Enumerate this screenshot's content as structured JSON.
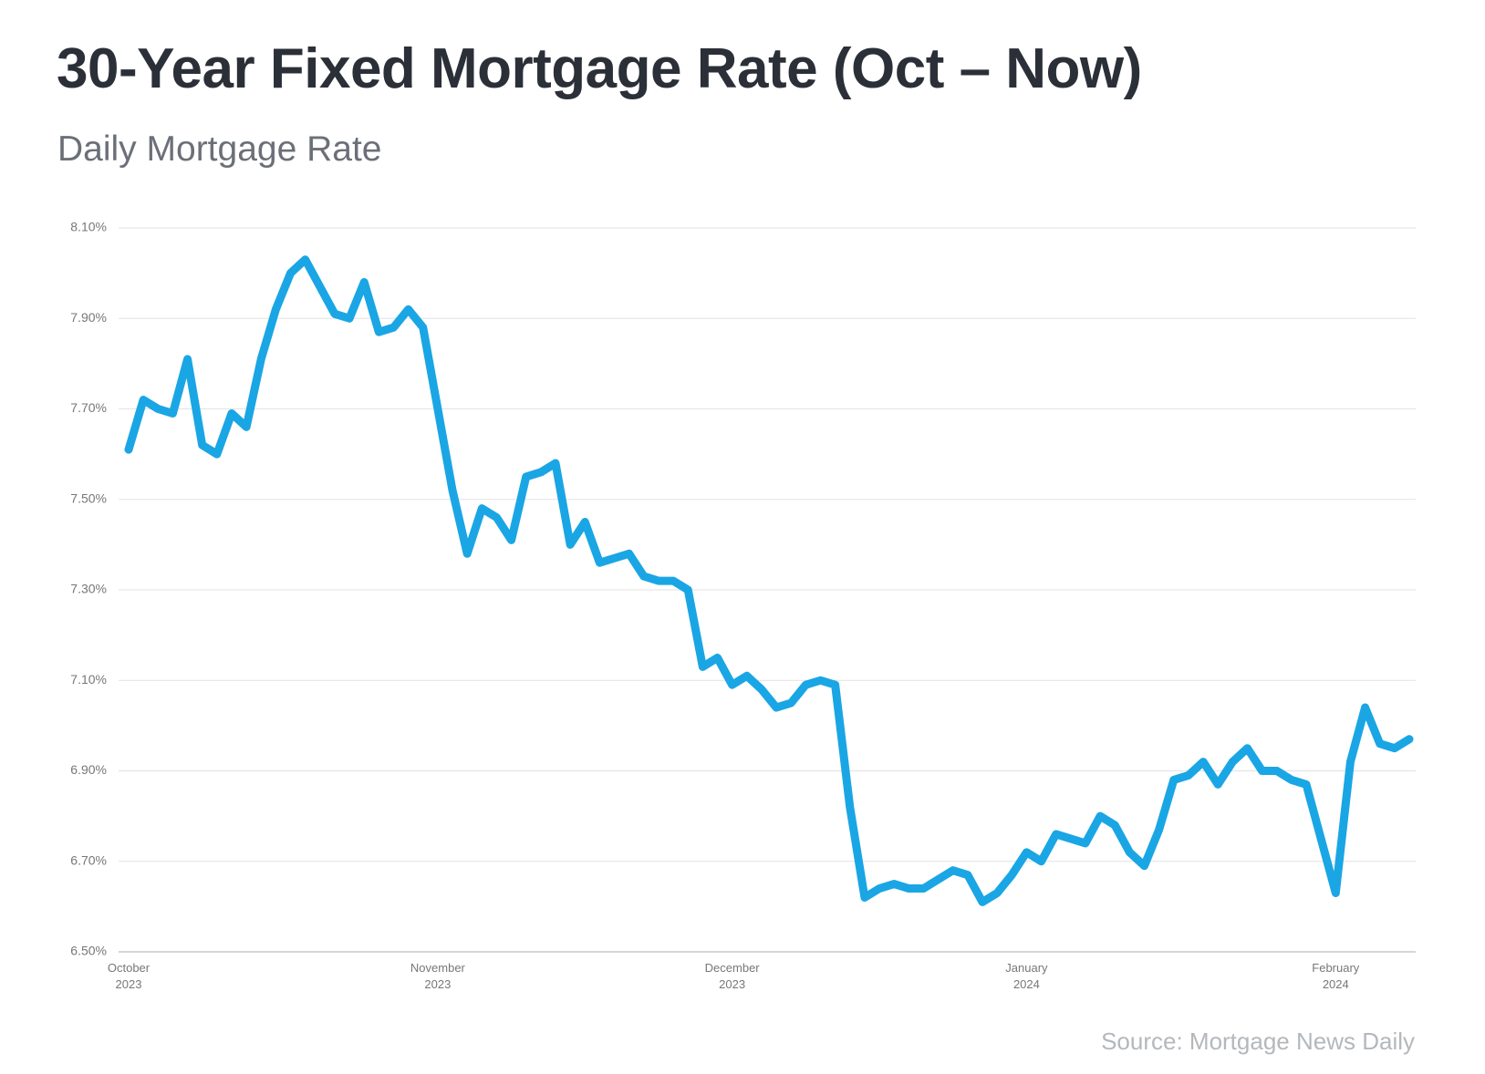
{
  "chart_data": {
    "type": "line",
    "title": "30-Year Fixed Mortgage Rate (Oct – Now)",
    "subtitle": "Daily Mortgage Rate",
    "source": "Source: Mortgage News Daily",
    "color": "#1aa6e4",
    "grid": true,
    "ylim": [
      6.5,
      8.1
    ],
    "yticks": [
      {
        "value": 6.5,
        "label": "6.50%"
      },
      {
        "value": 6.7,
        "label": "6.70%"
      },
      {
        "value": 6.9,
        "label": "6.90%"
      },
      {
        "value": 7.1,
        "label": "7.10%"
      },
      {
        "value": 7.3,
        "label": "7.30%"
      },
      {
        "value": 7.5,
        "label": "7.50%"
      },
      {
        "value": 7.7,
        "label": "7.70%"
      },
      {
        "value": 7.9,
        "label": "7.90%"
      },
      {
        "value": 8.1,
        "label": "8.10%"
      }
    ],
    "categories": [
      "October 2023",
      null,
      null,
      null,
      null,
      null,
      null,
      null,
      null,
      null,
      null,
      null,
      null,
      null,
      null,
      null,
      null,
      null,
      null,
      null,
      null,
      "November 2023",
      null,
      null,
      null,
      null,
      null,
      null,
      null,
      null,
      null,
      null,
      null,
      null,
      null,
      null,
      null,
      null,
      null,
      null,
      null,
      "December 2023",
      null,
      null,
      null,
      null,
      null,
      null,
      null,
      null,
      null,
      null,
      null,
      null,
      null,
      null,
      null,
      null,
      null,
      null,
      null,
      "January 2024",
      null,
      null,
      null,
      null,
      null,
      null,
      null,
      null,
      null,
      null,
      null,
      null,
      null,
      null,
      null,
      null,
      null,
      null,
      null,
      null,
      "February 2024",
      null,
      null,
      null,
      null,
      null
    ],
    "values": [
      7.61,
      7.72,
      7.7,
      7.69,
      7.81,
      7.62,
      7.6,
      7.69,
      7.66,
      7.81,
      7.92,
      8.0,
      8.03,
      7.97,
      7.91,
      7.9,
      7.98,
      7.87,
      7.88,
      7.92,
      7.88,
      7.7,
      7.52,
      7.38,
      7.48,
      7.46,
      7.41,
      7.55,
      7.56,
      7.58,
      7.4,
      7.45,
      7.36,
      7.37,
      7.38,
      7.33,
      7.32,
      7.32,
      7.3,
      7.13,
      7.15,
      7.09,
      7.11,
      7.08,
      7.04,
      7.05,
      7.09,
      7.1,
      7.09,
      6.82,
      6.62,
      6.64,
      6.65,
      6.64,
      6.64,
      6.66,
      6.68,
      6.67,
      6.61,
      6.63,
      6.67,
      6.72,
      6.7,
      6.76,
      6.75,
      6.74,
      6.8,
      6.78,
      6.72,
      6.69,
      6.77,
      6.88,
      6.89,
      6.92,
      6.87,
      6.92,
      6.95,
      6.9,
      6.9,
      6.88,
      6.87,
      6.75,
      6.63,
      6.92,
      7.04,
      6.96,
      6.95,
      6.97
    ]
  }
}
